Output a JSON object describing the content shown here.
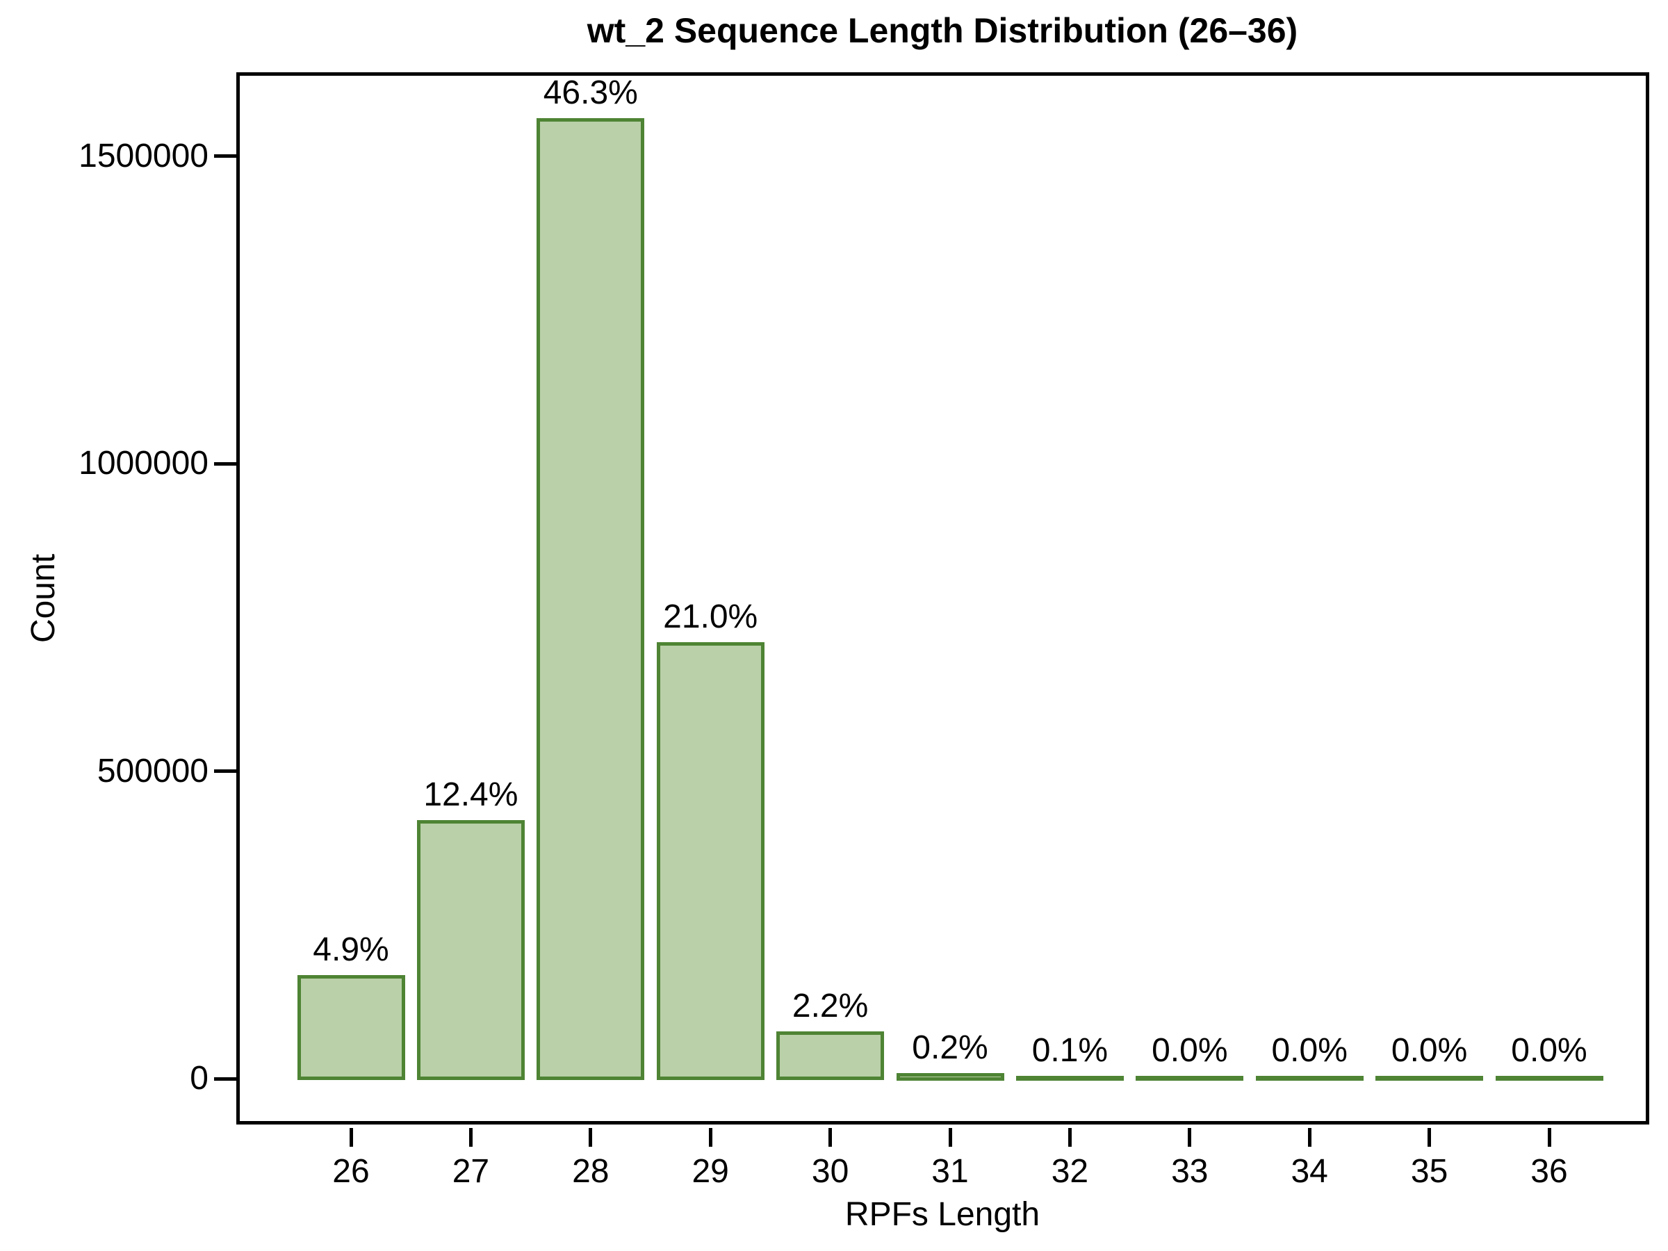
{
  "title": "wt_2 Sequence Length Distribution (26–36)",
  "chart_data": {
    "type": "bar",
    "title": "wt_2 Sequence Length Distribution (26–36)",
    "xlabel": "RPFs Length",
    "ylabel": "Count",
    "categories": [
      "26",
      "27",
      "28",
      "29",
      "30",
      "31",
      "32",
      "33",
      "34",
      "35",
      "36"
    ],
    "values": [
      165000,
      418000,
      1559000,
      707000,
      74000,
      6700,
      3400,
      1200,
      800,
      500,
      400
    ],
    "percent_labels": [
      "4.9%",
      "12.4%",
      "46.3%",
      "21.0%",
      "2.2%",
      "0.2%",
      "0.1%",
      "0.0%",
      "0.0%",
      "0.0%",
      "0.0%"
    ],
    "yticks": [
      0,
      500000,
      1000000,
      1500000
    ],
    "ytick_labels": [
      "0",
      "500000",
      "1000000",
      "1500000"
    ],
    "ylim": [
      0,
      1640000
    ],
    "grid": "off",
    "legend": "none",
    "bar_fill_color": "#b9d0a8",
    "bar_stroke_color": "#4e8434",
    "axis_color": "#000000",
    "text_color": "#000000",
    "background_color": "#ffffff"
  }
}
